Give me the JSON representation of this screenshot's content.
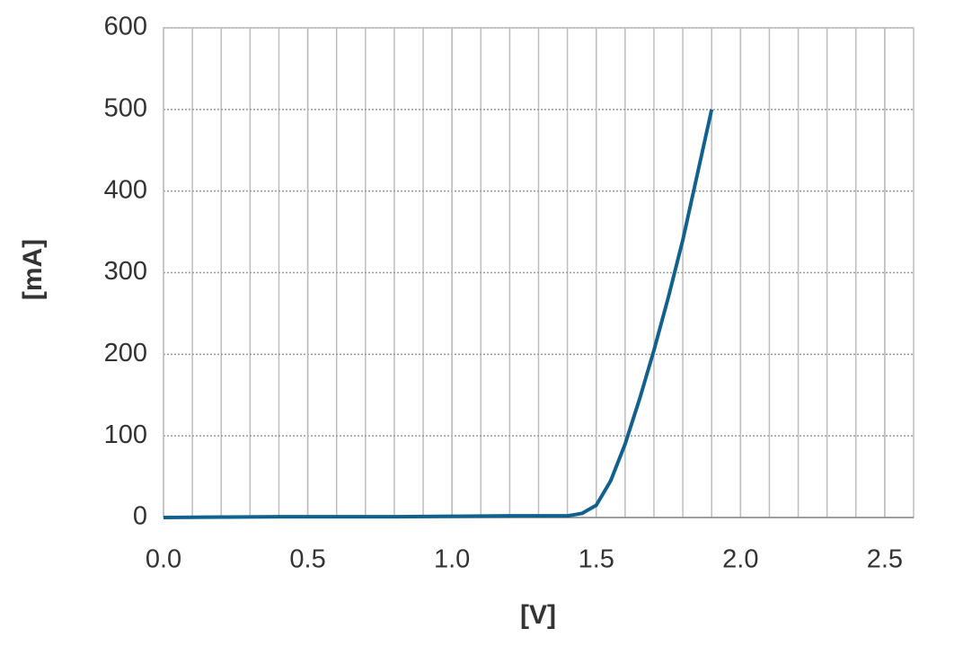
{
  "chart_data": {
    "type": "line",
    "xlabel": "[V]",
    "ylabel": "[mA]",
    "x": [
      0,
      0.2,
      0.4,
      0.6,
      0.8,
      1.0,
      1.2,
      1.3,
      1.4,
      1.45,
      1.5,
      1.55,
      1.6,
      1.65,
      1.7,
      1.75,
      1.8,
      1.85,
      1.9
    ],
    "values": [
      0,
      0.5,
      1,
      1,
      1,
      1.5,
      2,
      2,
      2,
      5,
      15,
      45,
      90,
      145,
      205,
      270,
      340,
      420,
      500
    ],
    "color": "#11618f",
    "xlim": [
      0,
      2.6
    ],
    "xticks": [
      {
        "value": 0,
        "label": "0.0"
      },
      0.5,
      {
        "value": 1,
        "label": "1.0"
      },
      1.5,
      {
        "value": 2,
        "label": "2.0"
      },
      2.5
    ],
    "ylim": [
      0,
      600
    ],
    "yticks": [
      0,
      100,
      200,
      300,
      400,
      500,
      600
    ],
    "grid": true
  }
}
